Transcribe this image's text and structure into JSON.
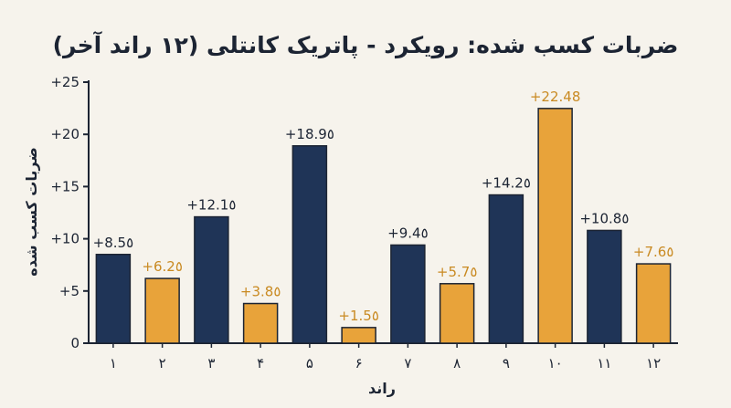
{
  "chart_data": {
    "type": "bar",
    "title": "ضربات کسب شده: رویکرد - پاتریک کانتلی (۱۲ راند آخر)",
    "xlabel": "راند",
    "ylabel": "ضربات کسب شده",
    "categories": [
      "۱",
      "۲",
      "۳",
      "۴",
      "۵",
      "۶",
      "۷",
      "۸",
      "۹",
      "۱۰",
      "۱۱",
      "۱۲"
    ],
    "values": [
      8.5,
      6.2,
      12.1,
      3.8,
      18.9,
      1.5,
      9.4,
      5.7,
      14.2,
      22.48,
      10.8,
      7.6
    ],
    "data_labels": [
      "+8.5٥",
      "+6.2٥",
      "+12.1٥",
      "+3.8٥",
      "+18.9٥",
      "+1.5٥",
      "+9.4٥",
      "+5.7٥",
      "+14.2٥",
      "+22.48",
      "+10.8٥",
      "+7.6٥"
    ],
    "bar_colors": [
      "navy",
      "orange",
      "navy",
      "orange",
      "navy",
      "orange",
      "navy",
      "orange",
      "navy",
      "orange",
      "navy",
      "orange"
    ],
    "yticks": [
      0,
      5,
      10,
      15,
      20,
      25
    ],
    "ytick_labels": [
      "0",
      "+5",
      "+10",
      "+15",
      "+20",
      "+25"
    ],
    "ylim": [
      0,
      25
    ],
    "grid": false,
    "colors": {
      "navy": "#1f3457",
      "orange": "#e8a33a",
      "orange_label": "#c98a22",
      "text": "#1c2433",
      "background": "#f6f3ec"
    }
  }
}
